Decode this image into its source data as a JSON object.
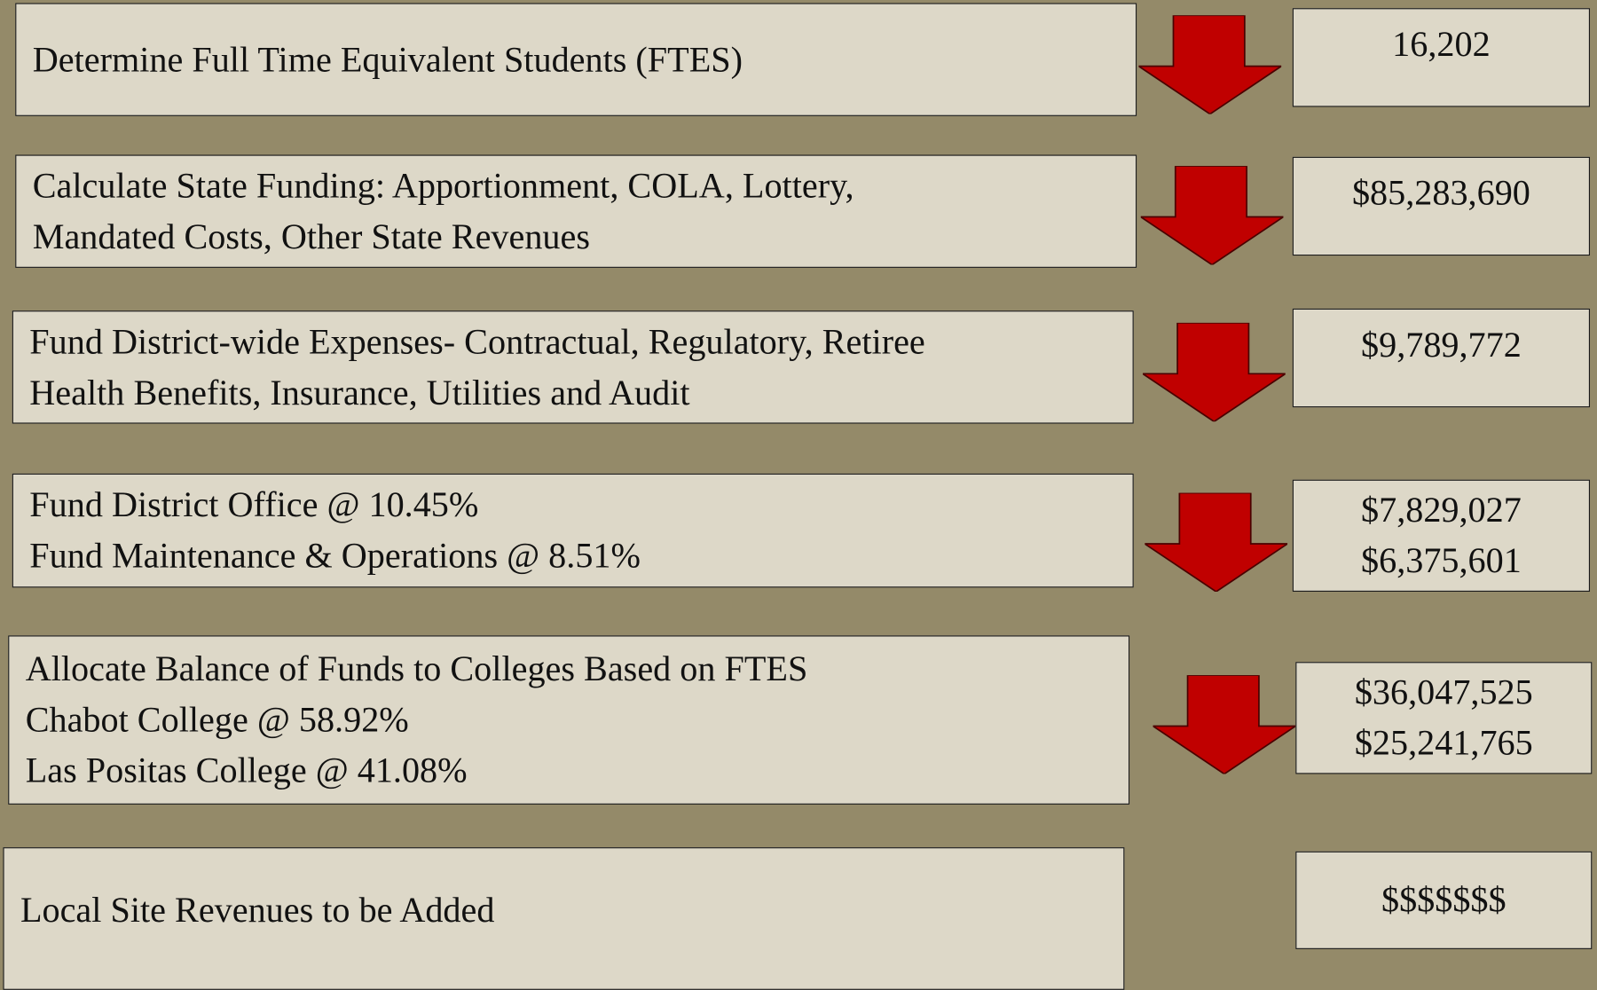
{
  "steps": [
    {
      "lines": [
        "Determine Full Time Equivalent Students (FTES)"
      ],
      "amounts": [
        "16,202"
      ]
    },
    {
      "lines": [
        "Calculate State Funding: Apportionment, COLA, Lottery,",
        "Mandated Costs, Other State Revenues"
      ],
      "amounts": [
        "$85,283,690"
      ]
    },
    {
      "lines": [
        "Fund District-wide Expenses- Contractual, Regulatory, Retiree",
        "Health Benefits, Insurance, Utilities and Audit"
      ],
      "amounts": [
        "$9,789,772"
      ]
    },
    {
      "lines": [
        "Fund District Office @ 10.45%",
        "Fund Maintenance & Operations @ 8.51%"
      ],
      "amounts": [
        "$7,829,027",
        "$6,375,601"
      ]
    },
    {
      "lines": [
        "Allocate Balance of Funds to Colleges Based on FTES",
        "Chabot College @ 58.92%",
        "Las Positas College @ 41.08%"
      ],
      "amounts": [
        "$36,047,525",
        "$25,241,765"
      ]
    },
    {
      "lines": [
        "Local Site Revenues to be Added"
      ],
      "amounts": [
        "$$$$$$$"
      ]
    }
  ]
}
